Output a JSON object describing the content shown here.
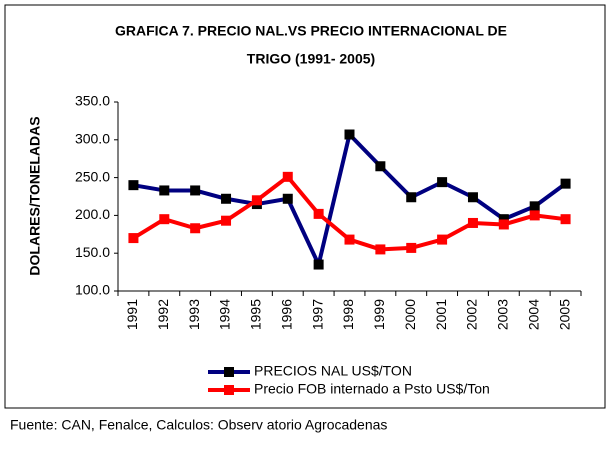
{
  "chart_data": {
    "type": "line",
    "title": "GRAFICA 7. PRECIO NAL.VS PRECIO INTERNACIONAL DE",
    "subtitle": "TRIGO  (1991- 2005)",
    "y_label": "DOLARES/TONELADAS",
    "source": "Fuente: CAN, Fenalce, Calculos: Observ atorio Agrocadenas",
    "categories": [
      "1991",
      "1992",
      "1993",
      "1994",
      "1995",
      "1996",
      "1997",
      "1998",
      "1999",
      "2000",
      "2001",
      "2002",
      "2003",
      "2004",
      "2005"
    ],
    "series": [
      {
        "name": "PRECIOS NAL US$/TON",
        "color": "#000080",
        "values": [
          240,
          233,
          233,
          222,
          215,
          222,
          135,
          307,
          265,
          224,
          244,
          224,
          195,
          212,
          242
        ]
      },
      {
        "name": "Precio FOB  internado a Psto US$/Ton",
        "color": "#ff0000",
        "values": [
          170,
          195,
          183,
          193,
          220,
          251,
          202,
          168,
          155,
          157,
          168,
          190,
          188,
          200,
          195
        ]
      }
    ],
    "ylim": [
      100,
      350
    ],
    "yticks": [
      {
        "value": 100,
        "label": "100.0"
      },
      {
        "value": 150,
        "label": "150.0"
      },
      {
        "value": 200,
        "label": "200.0"
      },
      {
        "value": 250,
        "label": "250.0"
      },
      {
        "value": 300,
        "label": "300.0"
      },
      {
        "value": 350,
        "label": "350.0"
      }
    ],
    "grid": false
  }
}
